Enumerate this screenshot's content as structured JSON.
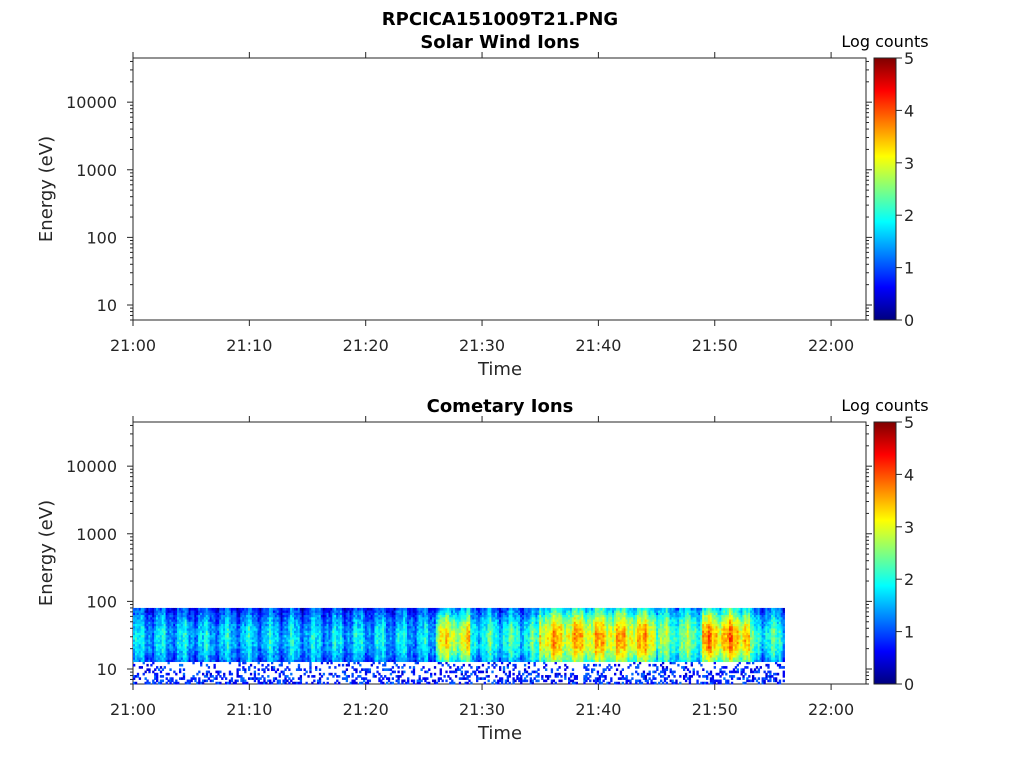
{
  "figure_title": "RPCICA151009T21.PNG",
  "chart_data": [
    {
      "type": "heatmap",
      "title": "Solar Wind Ions",
      "xlabel": "Time",
      "ylabel": "Energy (eV)",
      "yscale": "log",
      "ylim": [
        6,
        45000
      ],
      "xlim": [
        "21:00",
        "22:03"
      ],
      "xticks": [
        "21:00",
        "21:10",
        "21:20",
        "21:30",
        "21:40",
        "21:50",
        "22:00"
      ],
      "yticks": [
        "10",
        "100",
        "1000",
        "10000"
      ],
      "colorbar": {
        "label": "Log counts",
        "range": [
          0,
          5
        ],
        "ticks": [
          "0",
          "1",
          "2",
          "3",
          "4",
          "5"
        ],
        "colormap": "jet"
      },
      "data": "empty (no counts)"
    },
    {
      "type": "heatmap",
      "title": "Cometary Ions",
      "xlabel": "Time",
      "ylabel": "Energy (eV)",
      "yscale": "log",
      "ylim": [
        6,
        45000
      ],
      "xlim": [
        "21:00",
        "22:03"
      ],
      "xticks": [
        "21:00",
        "21:10",
        "21:20",
        "21:30",
        "21:40",
        "21:50",
        "22:00"
      ],
      "yticks": [
        "10",
        "100",
        "1000",
        "10000"
      ],
      "colorbar": {
        "label": "Log counts",
        "range": [
          0,
          5
        ],
        "ticks": [
          "0",
          "1",
          "2",
          "3",
          "4",
          "5"
        ],
        "colormap": "jet"
      },
      "data": {
        "time_range": [
          "21:00",
          "21:56"
        ],
        "energy_range_eV": [
          6,
          80
        ],
        "segments": [
          {
            "start": "21:00",
            "end": "21:26",
            "log_counts_upper": 1.6,
            "log_counts_lower": 0.8
          },
          {
            "start": "21:26",
            "end": "21:29",
            "log_counts_upper": 3.0,
            "log_counts_lower": 1.3
          },
          {
            "start": "21:29",
            "end": "21:35",
            "log_counts_upper": 2.0,
            "log_counts_lower": 1.0
          },
          {
            "start": "21:35",
            "end": "21:45",
            "log_counts_upper": 3.3,
            "log_counts_lower": 1.8
          },
          {
            "start": "21:45",
            "end": "21:49",
            "log_counts_upper": 2.4,
            "log_counts_lower": 1.4
          },
          {
            "start": "21:49",
            "end": "21:53",
            "log_counts_upper": 3.5,
            "log_counts_lower": 1.8
          },
          {
            "start": "21:53",
            "end": "21:56",
            "log_counts_upper": 2.0,
            "log_counts_lower": 1.0
          }
        ]
      }
    }
  ]
}
